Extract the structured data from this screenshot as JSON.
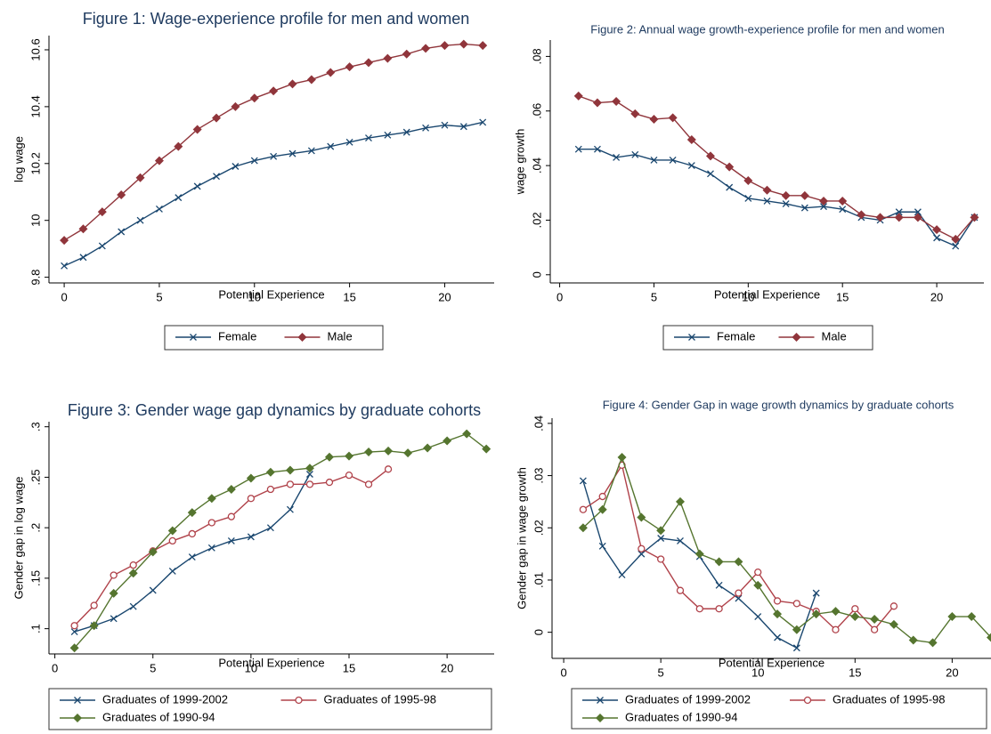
{
  "chart_data": [
    {
      "type": "line",
      "title": "Figure 1: Wage-experience profile for men and women",
      "xlabel": "Potential Experience",
      "ylabel": "log wage",
      "x": [
        0,
        1,
        2,
        3,
        4,
        5,
        6,
        7,
        8,
        9,
        10,
        11,
        12,
        13,
        14,
        15,
        16,
        17,
        18,
        19,
        20,
        21,
        22
      ],
      "series": [
        {
          "name": "Female",
          "color": "#1a476f",
          "marker": "x",
          "values": [
            9.84,
            9.87,
            9.91,
            9.96,
            10.0,
            10.04,
            10.08,
            10.12,
            10.155,
            10.19,
            10.21,
            10.225,
            10.235,
            10.245,
            10.26,
            10.275,
            10.29,
            10.3,
            10.31,
            10.325,
            10.335,
            10.33,
            10.345
          ]
        },
        {
          "name": "Male",
          "color": "#90353b",
          "marker": "diamond",
          "values": [
            9.93,
            9.97,
            10.03,
            10.09,
            10.15,
            10.21,
            10.26,
            10.32,
            10.36,
            10.4,
            10.43,
            10.455,
            10.48,
            10.495,
            10.52,
            10.54,
            10.555,
            10.57,
            10.585,
            10.605,
            10.615,
            10.62,
            10.615
          ]
        }
      ],
      "xlim": [
        -0.8,
        22.6
      ],
      "xticks": [
        0,
        5,
        10,
        15,
        20
      ],
      "ylim": [
        9.78,
        10.65
      ],
      "yticks": [
        9.8,
        10,
        10.2,
        10.4,
        10.6
      ],
      "legend": "bottom"
    },
    {
      "type": "line",
      "title": "Figure 2: Annual wage growth-experience profile for men and women",
      "xlabel": "Potential Experience",
      "ylabel": "wage growth",
      "x": [
        1,
        2,
        3,
        4,
        5,
        6,
        7,
        8,
        9,
        10,
        11,
        12,
        13,
        14,
        15,
        16,
        17,
        18,
        19,
        20,
        21,
        22
      ],
      "series": [
        {
          "name": "Female",
          "color": "#1a476f",
          "marker": "x",
          "values": [
            0.046,
            0.046,
            0.043,
            0.044,
            0.042,
            0.042,
            0.04,
            0.037,
            0.032,
            0.028,
            0.027,
            0.026,
            0.0245,
            0.025,
            0.024,
            0.021,
            0.02,
            0.023,
            0.023,
            0.0135,
            0.0105,
            0.021
          ]
        },
        {
          "name": "Male",
          "color": "#90353b",
          "marker": "diamond",
          "values": [
            0.0655,
            0.063,
            0.0635,
            0.059,
            0.057,
            0.0575,
            0.0495,
            0.0435,
            0.0395,
            0.0345,
            0.031,
            0.029,
            0.029,
            0.027,
            0.027,
            0.022,
            0.021,
            0.021,
            0.021,
            0.0165,
            0.013,
            0.021
          ]
        }
      ],
      "xlim": [
        -0.5,
        22.5
      ],
      "xticks": [
        0,
        5,
        10,
        15,
        20
      ],
      "ylim": [
        -0.003,
        0.086
      ],
      "yticks": [
        0,
        {
          "value": 0.02,
          "label": ".02"
        },
        {
          "value": 0.04,
          "label": ".04"
        },
        {
          "value": 0.06,
          "label": ".06"
        },
        {
          "value": 0.08,
          "label": ".08"
        }
      ],
      "legend": "bottom"
    },
    {
      "type": "line",
      "title": "Figure 3: Gender wage gap dynamics by graduate cohorts",
      "xlabel": "Potential Experience",
      "ylabel": "Gender gap in log wage",
      "x": [
        1,
        2,
        3,
        4,
        5,
        6,
        7,
        8,
        9,
        10,
        11,
        12,
        13,
        14,
        15,
        16,
        17,
        18,
        19,
        20,
        21,
        22
      ],
      "series": [
        {
          "name": "Graduates of 1999-2002",
          "color": "#1a476f",
          "marker": "x",
          "values": [
            0.097,
            0.103,
            0.11,
            0.122,
            0.138,
            0.157,
            0.171,
            0.18,
            0.187,
            0.191,
            0.2,
            0.218,
            0.253,
            null,
            null,
            null,
            null,
            null,
            null,
            null,
            null,
            null
          ]
        },
        {
          "name": "Graduates of 1995-98",
          "color": "#b0424a",
          "marker": "circle",
          "values": [
            0.103,
            0.123,
            0.153,
            0.163,
            0.177,
            0.187,
            0.194,
            0.205,
            0.211,
            0.229,
            0.238,
            0.243,
            0.243,
            0.245,
            0.252,
            0.243,
            0.258,
            null,
            null,
            null,
            null,
            null
          ]
        },
        {
          "name": "Graduates of 1990-94",
          "color": "#55752f",
          "marker": "diamond",
          "values": [
            0.081,
            0.103,
            0.135,
            0.155,
            0.176,
            0.197,
            0.215,
            0.229,
            0.238,
            0.249,
            0.255,
            0.257,
            0.259,
            0.27,
            0.271,
            0.275,
            0.276,
            0.274,
            0.279,
            0.286,
            0.293,
            0.278
          ]
        }
      ],
      "xlim": [
        -0.3,
        22.4
      ],
      "xticks": [
        0,
        5,
        10,
        15,
        20
      ],
      "ylim": [
        0.075,
        0.305
      ],
      "yticks": [
        {
          "value": 0.1,
          "label": ".1"
        },
        {
          "value": 0.15,
          "label": ".15"
        },
        {
          "value": 0.2,
          "label": ".2"
        },
        {
          "value": 0.25,
          "label": ".25"
        },
        {
          "value": 0.3,
          "label": ".3"
        }
      ],
      "legend": "bottom"
    },
    {
      "type": "line",
      "title": "Figure 4: Gender Gap in wage growth dynamics by graduate cohorts",
      "xlabel": "Potential Experience",
      "ylabel": "Gender gap in wage growth",
      "x": [
        1,
        2,
        3,
        4,
        5,
        6,
        7,
        8,
        9,
        10,
        11,
        12,
        13,
        14,
        15,
        16,
        17,
        18,
        19,
        20,
        21,
        22
      ],
      "series": [
        {
          "name": "Graduates of 1999-2002",
          "color": "#1a476f",
          "marker": "x",
          "values": [
            0.029,
            0.0165,
            0.011,
            0.015,
            0.018,
            0.0175,
            0.0145,
            0.009,
            0.0065,
            0.003,
            -0.001,
            -0.003,
            0.0075,
            null,
            null,
            null,
            null,
            null,
            null,
            null,
            null,
            null
          ]
        },
        {
          "name": "Graduates of 1995-98",
          "color": "#b0424a",
          "marker": "circle",
          "values": [
            0.0235,
            0.026,
            0.032,
            0.016,
            0.014,
            0.008,
            0.0045,
            0.0045,
            0.0075,
            0.0115,
            0.006,
            0.0055,
            0.004,
            0.0005,
            0.0045,
            0.0005,
            0.005,
            null,
            null,
            null,
            null,
            null
          ]
        },
        {
          "name": "Graduates of 1990-94",
          "color": "#55752f",
          "marker": "diamond",
          "values": [
            0.02,
            0.0235,
            0.0335,
            0.022,
            0.0195,
            0.025,
            0.015,
            0.0135,
            0.0135,
            0.009,
            0.0035,
            0.0005,
            0.0035,
            0.004,
            0.003,
            0.0025,
            0.0015,
            -0.0015,
            -0.002,
            0.003,
            0.003,
            -0.001
          ]
        }
      ],
      "xlim": [
        -0.6,
        22.0
      ],
      "xticks": [
        0,
        5,
        10,
        15,
        20
      ],
      "ylim": [
        -0.005,
        0.041
      ],
      "yticks": [
        0,
        {
          "value": 0.01,
          "label": ".01"
        },
        {
          "value": 0.02,
          "label": ".02"
        },
        {
          "value": 0.03,
          "label": ".03"
        },
        {
          "value": 0.04,
          "label": ".04"
        }
      ],
      "legend": "bottom"
    }
  ]
}
